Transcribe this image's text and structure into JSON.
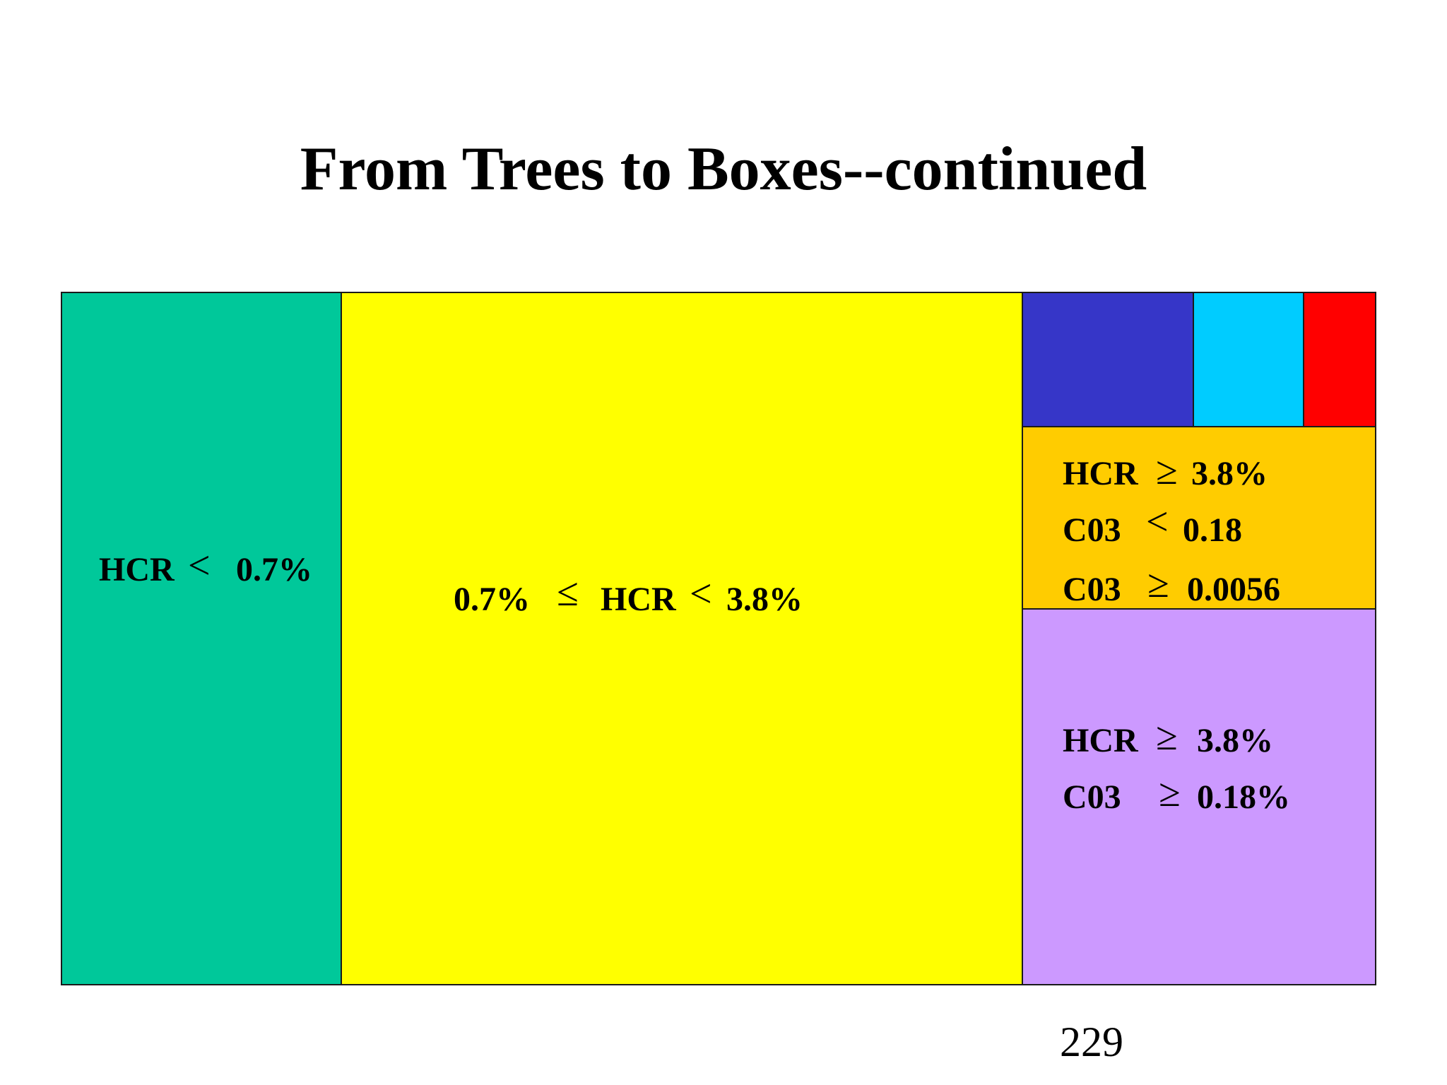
{
  "title": "From Trees to Boxes--continued",
  "page_number": "229",
  "symbols": {
    "lt": "<",
    "le": "≤",
    "ge": "≥"
  },
  "boxes": {
    "hcr_low": {
      "color": "#00C89A",
      "rows": [
        {
          "left": "HCR",
          "op": "<",
          "right": "0.7%"
        }
      ]
    },
    "hcr_mid": {
      "color": "#FFFF00",
      "rows": [
        {
          "left": "0.7%",
          "op1": "≤",
          "middle": "HCR",
          "op2": "<",
          "right": "3.8%"
        }
      ]
    },
    "small_blue": {
      "color": "#3636C8"
    },
    "small_cyan": {
      "color": "#00CCFF"
    },
    "small_red": {
      "color": "#FF0000"
    },
    "hcr_high_c03_low": {
      "color": "#FFCC00",
      "rows": [
        {
          "left": "HCR",
          "op": "≥",
          "right": "3.8%"
        },
        {
          "left": "C03",
          "op": "<",
          "right": "0.18"
        },
        {
          "left": "C03",
          "op": "≥",
          "right": "0.0056"
        }
      ]
    },
    "hcr_high_c03_high": {
      "color": "#CC99FF",
      "rows": [
        {
          "left": "HCR",
          "op": "≥",
          "right": "3.8%"
        },
        {
          "left": "C03",
          "op": "≥",
          "right": "0.18%"
        }
      ]
    }
  }
}
